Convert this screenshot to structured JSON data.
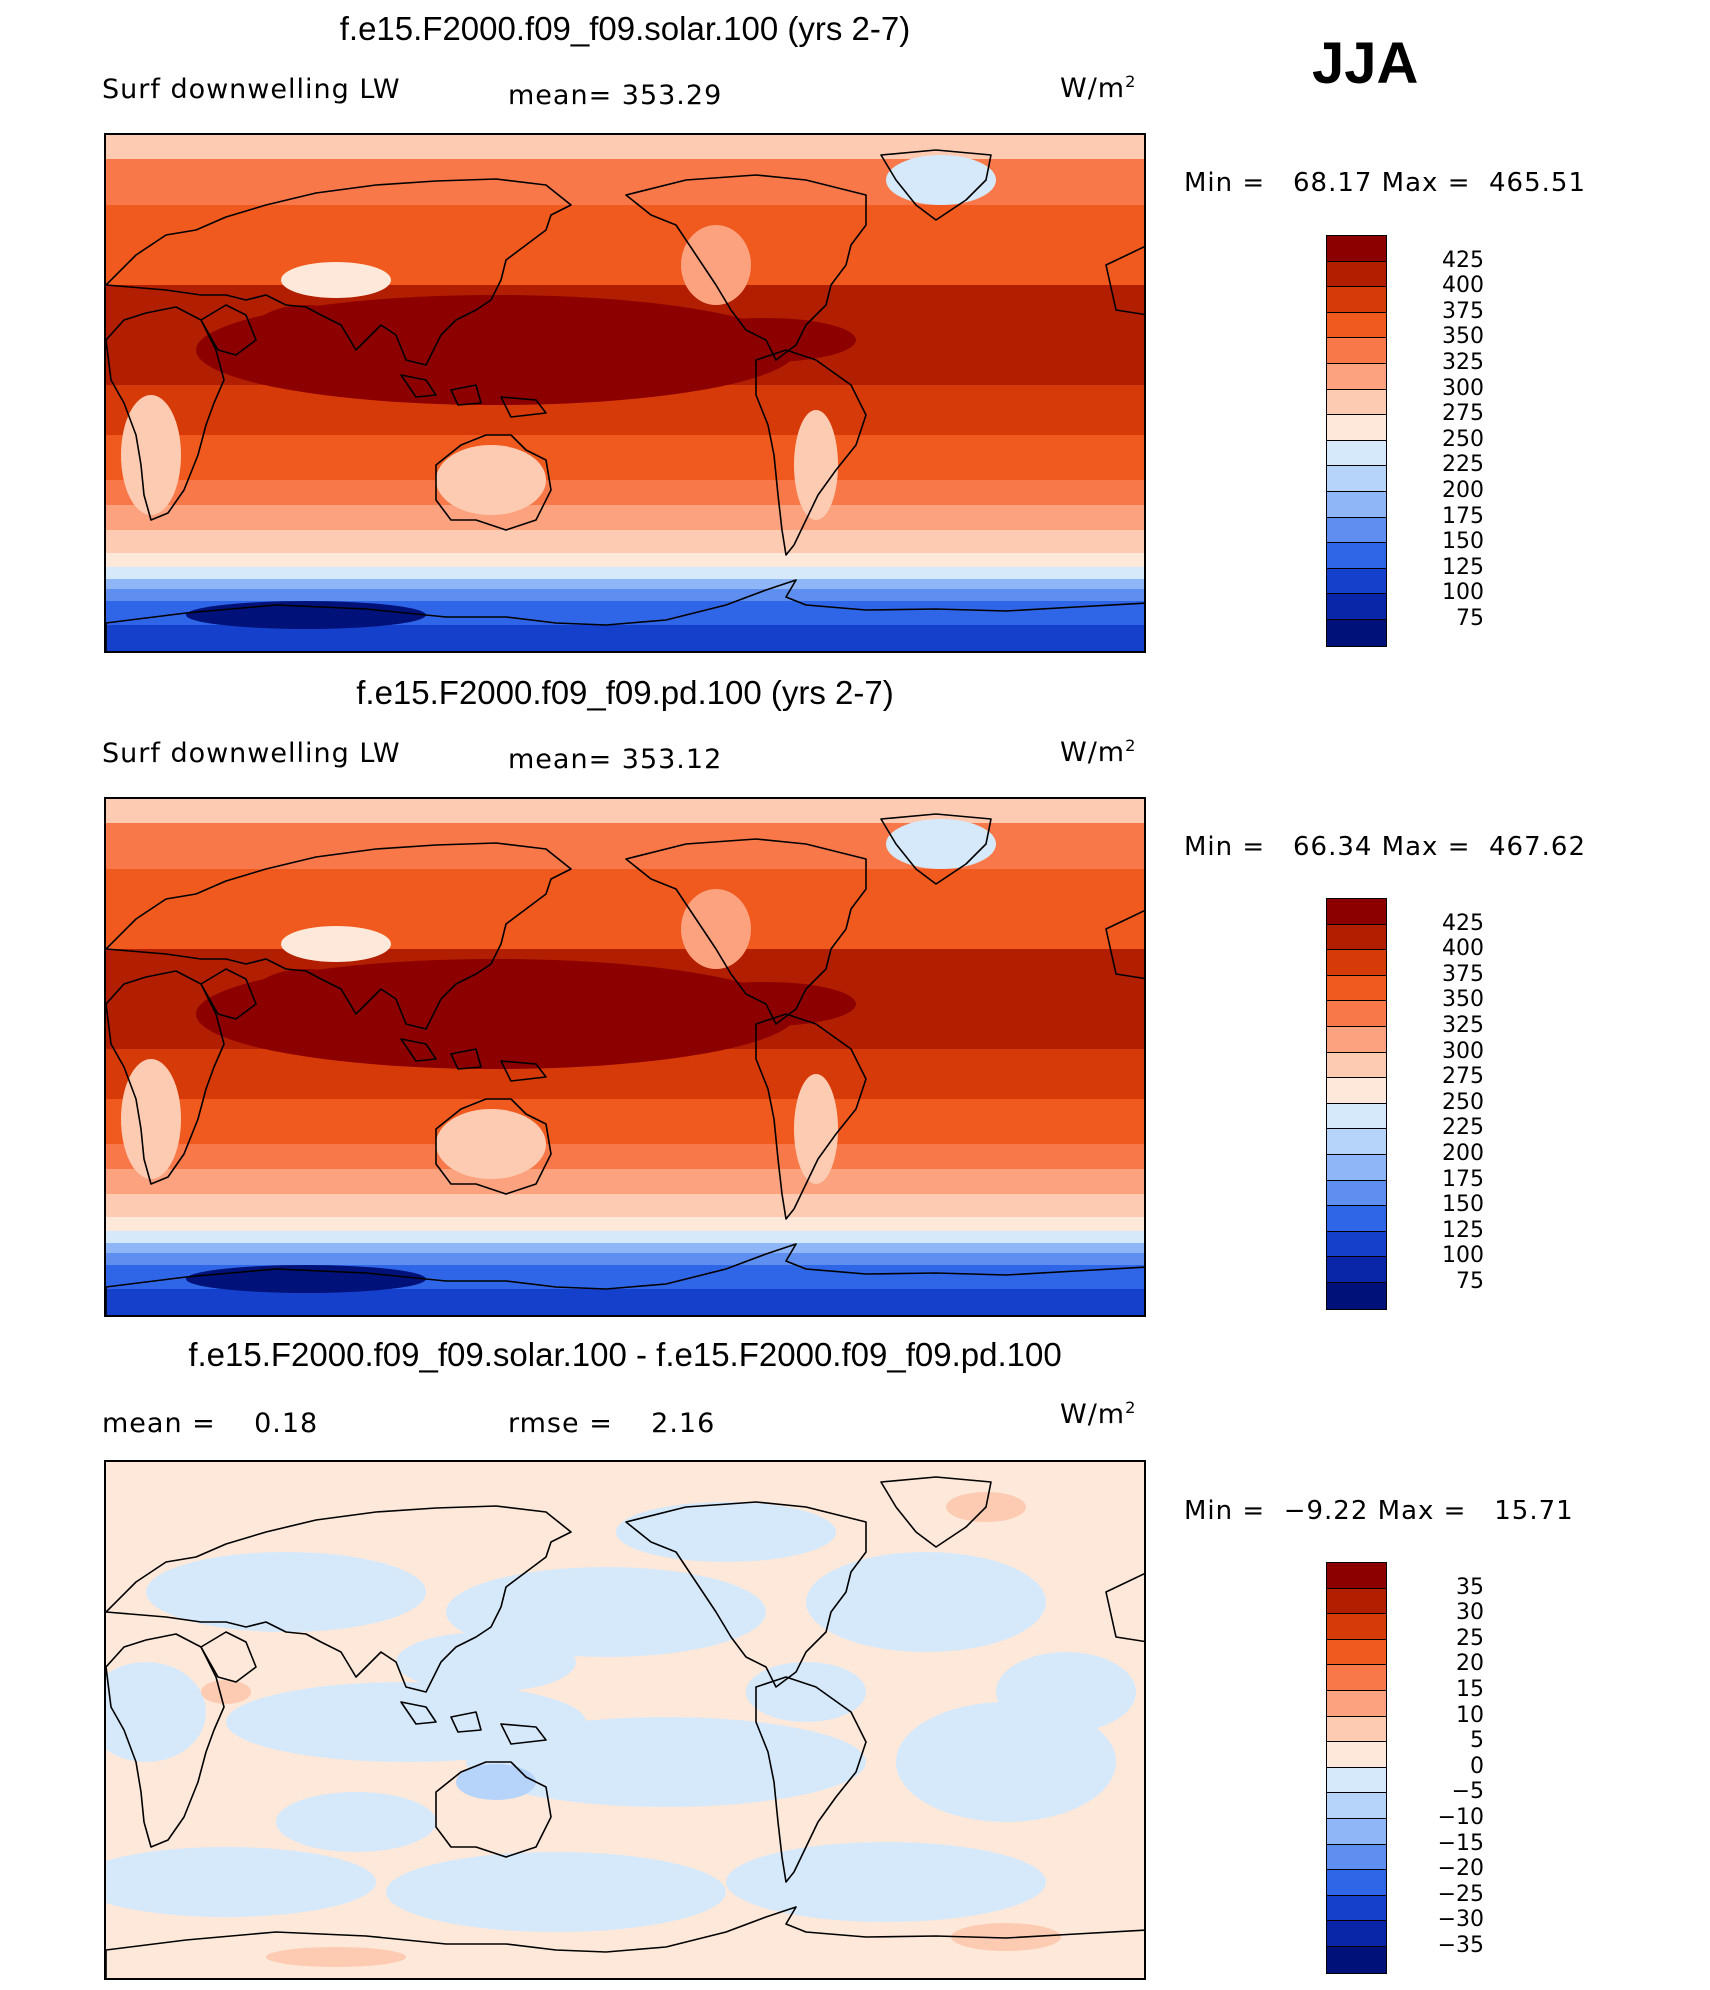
{
  "season": "JJA",
  "panels": [
    {
      "title": "f.e15.F2000.f09_f09.solar.100 (yrs 2-7)",
      "left_label": "Surf downwelling LW",
      "center_label": "mean= 353.29",
      "units": "W/m",
      "units_sup": "2",
      "minmax": "Min =   68.17 Max =  465.51",
      "colorbar": {
        "labels": [
          "425",
          "400",
          "375",
          "350",
          "325",
          "300",
          "275",
          "250",
          "225",
          "200",
          "175",
          "150",
          "125",
          "100",
          "75"
        ],
        "colors": [
          "#8c0000",
          "#b21e00",
          "#d63a08",
          "#f05a1f",
          "#f8784a",
          "#fca27e",
          "#fdcbb1",
          "#fde8da",
          "#d6e9fb",
          "#b6d3fa",
          "#8fb6f6",
          "#5e8ff0",
          "#2f66e8",
          "#1440cc",
          "#0a26a8",
          "#00127a"
        ]
      },
      "mean_value": 353.29
    },
    {
      "title": "f.e15.F2000.f09_f09.pd.100 (yrs 2-7)",
      "left_label": "Surf downwelling LW",
      "center_label": "mean= 353.12",
      "units": "W/m",
      "units_sup": "2",
      "minmax": "Min =   66.34 Max =  467.62",
      "colorbar": {
        "labels": [
          "425",
          "400",
          "375",
          "350",
          "325",
          "300",
          "275",
          "250",
          "225",
          "200",
          "175",
          "150",
          "125",
          "100",
          "75"
        ],
        "colors": [
          "#8c0000",
          "#b21e00",
          "#d63a08",
          "#f05a1f",
          "#f8784a",
          "#fca27e",
          "#fdcbb1",
          "#fde8da",
          "#d6e9fb",
          "#b6d3fa",
          "#8fb6f6",
          "#5e8ff0",
          "#2f66e8",
          "#1440cc",
          "#0a26a8",
          "#00127a"
        ]
      },
      "mean_value": 353.12
    },
    {
      "title": "f.e15.F2000.f09_f09.solar.100 - f.e15.F2000.f09_f09.pd.100",
      "left_label": "mean =    0.18",
      "center_label": "rmse =    2.16",
      "units": "W/m",
      "units_sup": "2",
      "minmax": "Min =  −9.22 Max =   15.71",
      "colorbar": {
        "labels": [
          "35",
          "30",
          "25",
          "20",
          "15",
          "10",
          "5",
          "0",
          "−5",
          "−10",
          "−15",
          "−20",
          "−25",
          "−30",
          "−35"
        ],
        "colors": [
          "#8c0000",
          "#b21e00",
          "#d63a08",
          "#f05a1f",
          "#f8784a",
          "#fca27e",
          "#fdcbb1",
          "#fde8da",
          "#d6e9fb",
          "#b6d3fa",
          "#8fb6f6",
          "#5e8ff0",
          "#2f66e8",
          "#1440cc",
          "#0a26a8",
          "#00127a"
        ]
      },
      "mean_value": 0.18
    }
  ]
}
